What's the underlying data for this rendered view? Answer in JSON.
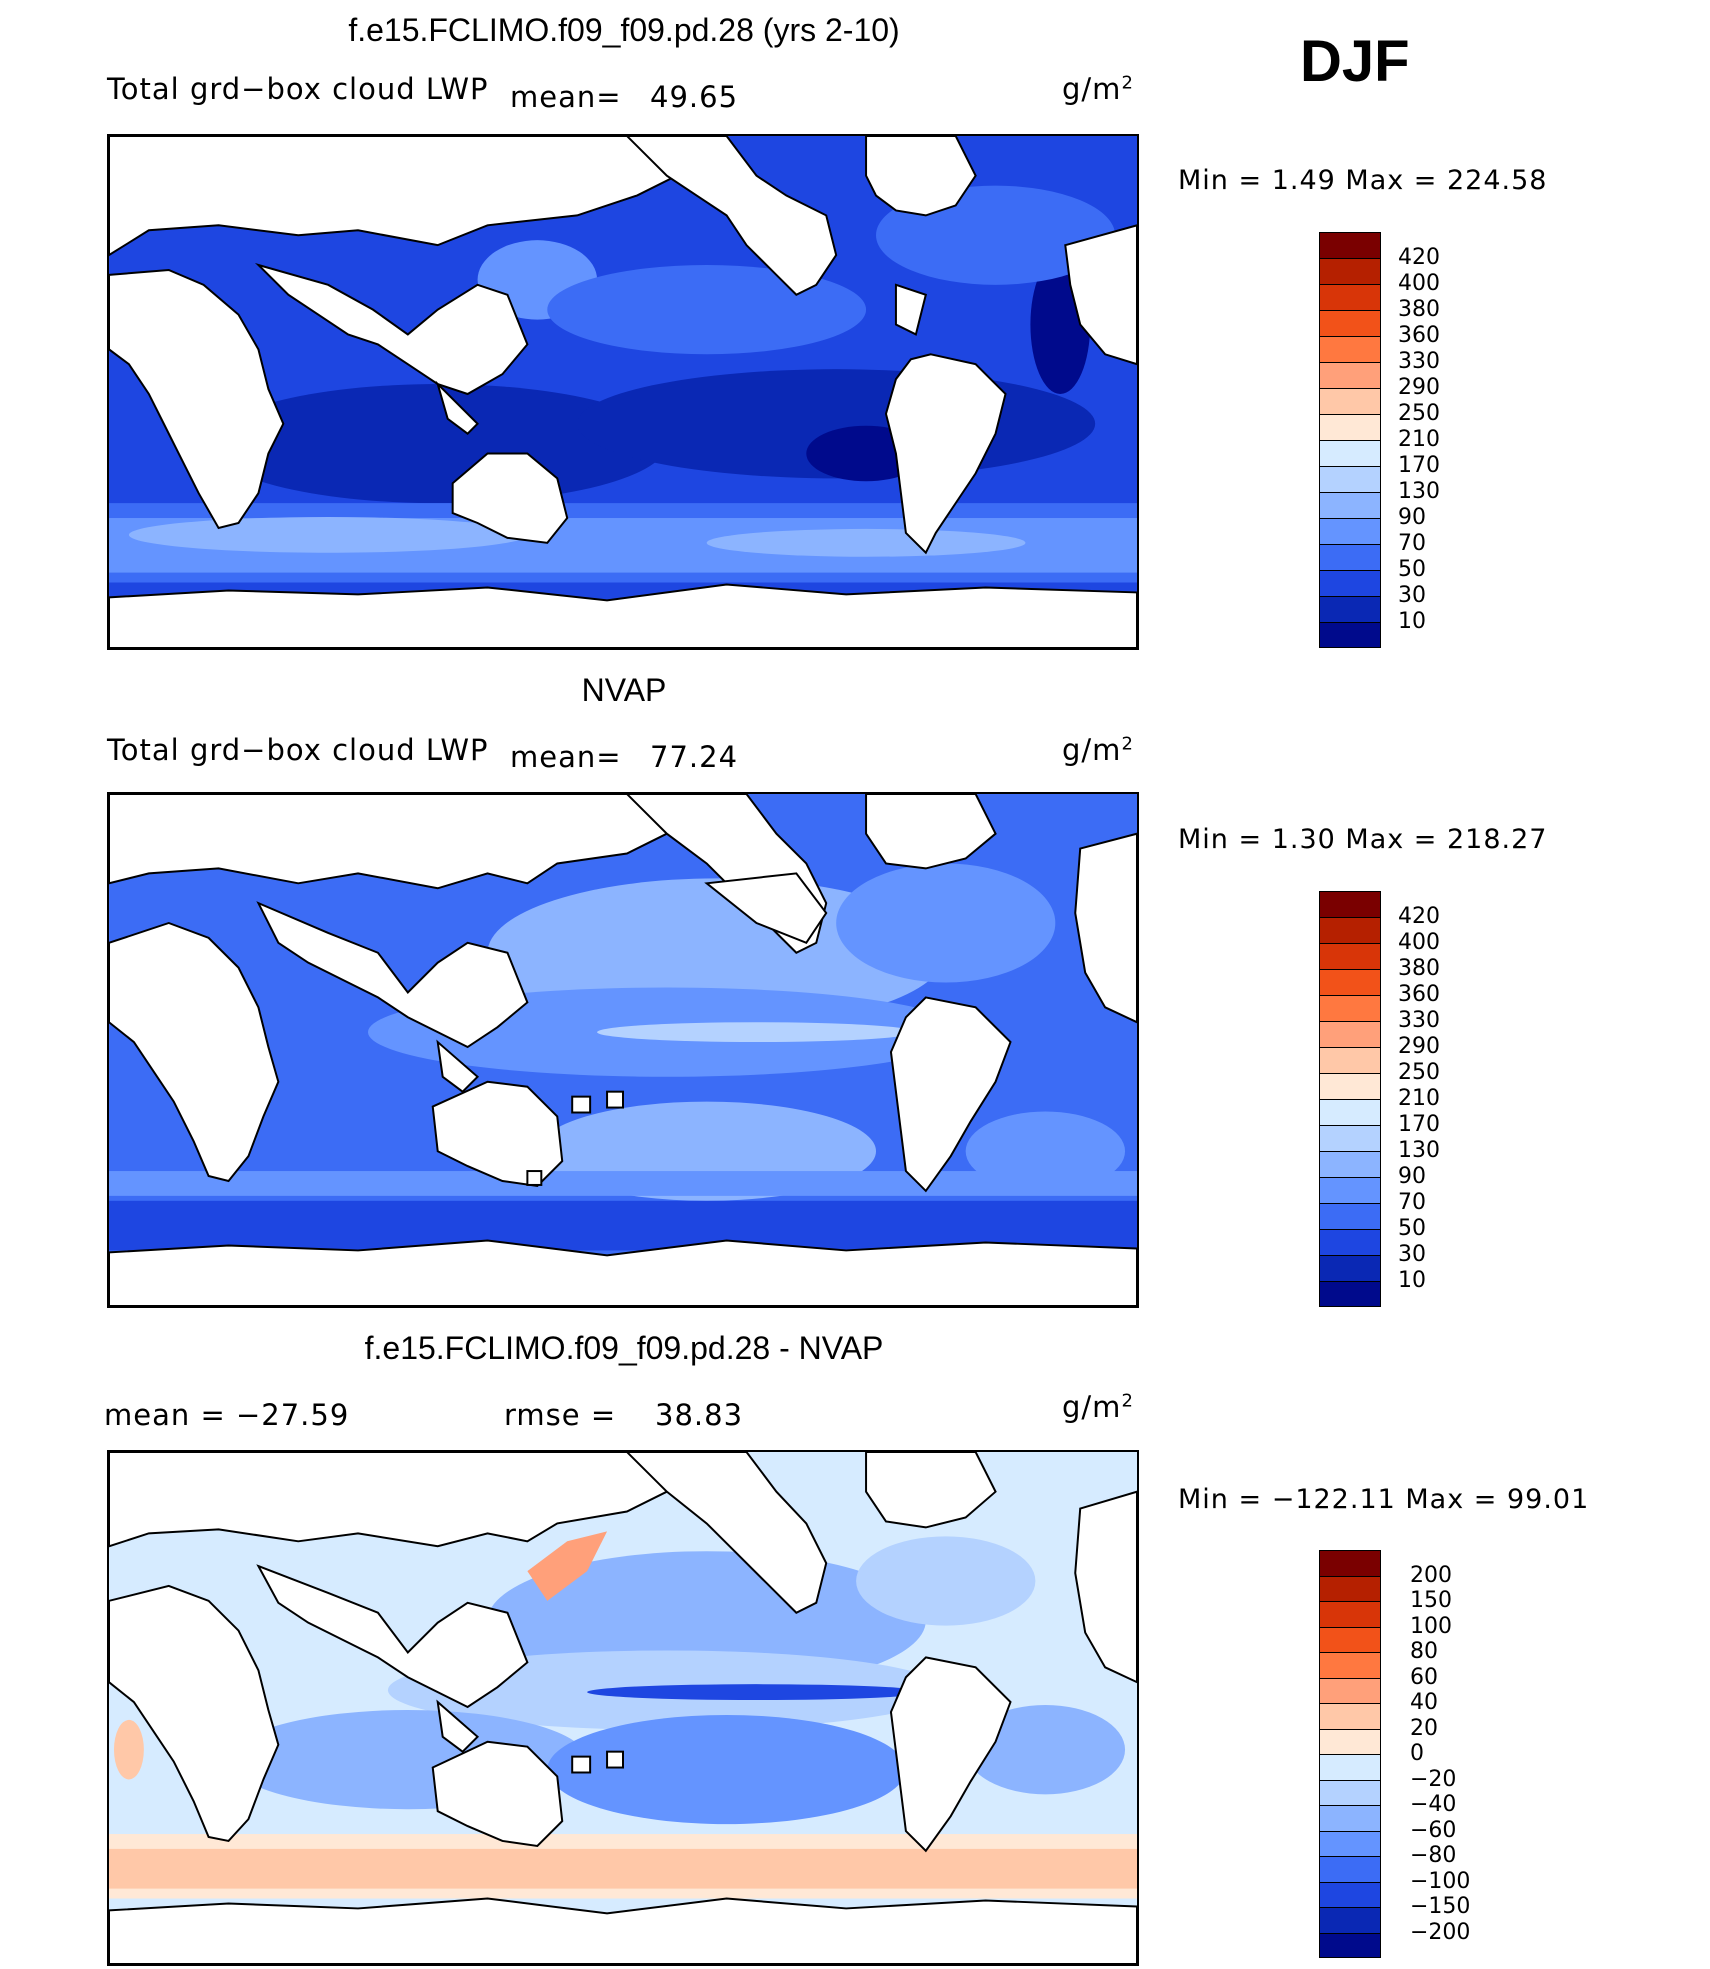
{
  "season": "DJF",
  "panels": [
    {
      "title": "f.e15.FCLIMO.f09_f09.pd.28 (yrs 2-10)",
      "left_text": "Total grd−box cloud LWP",
      "stat1_label": "mean=",
      "stat1_value": "49.65",
      "units": "g/m",
      "units_sup": "2",
      "minmax_text": "Min =     1.49  Max  =  224.58",
      "colorbar": {
        "labels": [
          "420",
          "400",
          "380",
          "360",
          "330",
          "290",
          "250",
          "210",
          "170",
          "130",
          "90",
          "70",
          "50",
          "30",
          "10"
        ],
        "colors": [
          "#7a0000",
          "#b52000",
          "#d83508",
          "#f25219",
          "#ff7840",
          "#ffa07a",
          "#ffc8a8",
          "#ffe8d6",
          "#d6ebff",
          "#b4d2ff",
          "#8cb4ff",
          "#6494ff",
          "#3c6cf5",
          "#1e46e1",
          "#0a28b4",
          "#000a8c"
        ]
      },
      "field": [
        {
          "region": "Southern Ocean band",
          "color": "#8cb4ff"
        },
        {
          "region": "subtropical ocean",
          "color": "#1e46e1"
        },
        {
          "region": "deep minima",
          "color": "#0a28b4"
        }
      ]
    },
    {
      "title": "NVAP",
      "left_text": "Total grd−box cloud LWP",
      "stat1_label": "mean=",
      "stat1_value": "77.24",
      "units": "g/m",
      "units_sup": "2",
      "minmax_text": "Min =     1.30  Max  =  218.27",
      "colorbar": {
        "labels": [
          "420",
          "400",
          "380",
          "360",
          "330",
          "290",
          "250",
          "210",
          "170",
          "130",
          "90",
          "70",
          "50",
          "30",
          "10"
        ],
        "colors": [
          "#7a0000",
          "#b52000",
          "#d83508",
          "#f25219",
          "#ff7840",
          "#ffa07a",
          "#ffc8a8",
          "#ffe8d6",
          "#d6ebff",
          "#b4d2ff",
          "#8cb4ff",
          "#6494ff",
          "#3c6cf5",
          "#1e46e1",
          "#0a28b4",
          "#000a8c"
        ]
      }
    },
    {
      "title": "f.e15.FCLIMO.f09_f09.pd.28 - NVAP",
      "left_text": "mean  =  −27.59",
      "stat1_label": "rmse  =",
      "stat1_value": "38.83",
      "units": "g/m",
      "units_sup": "2",
      "minmax_text": "Min  =  −122.11  Max  =     99.01",
      "colorbar": {
        "labels": [
          "200",
          "150",
          "100",
          "80",
          "60",
          "40",
          "20",
          "0",
          "−20",
          "−40",
          "−60",
          "−80",
          "−100",
          "−150",
          "−200"
        ],
        "colors": [
          "#7a0000",
          "#b52000",
          "#d83508",
          "#f25219",
          "#ff7840",
          "#ffa07a",
          "#ffc8a8",
          "#ffe8d6",
          "#d6ebff",
          "#b4d2ff",
          "#8cb4ff",
          "#6494ff",
          "#3c6cf5",
          "#1e46e1",
          "#0a28b4",
          "#000a8c"
        ]
      }
    }
  ]
}
